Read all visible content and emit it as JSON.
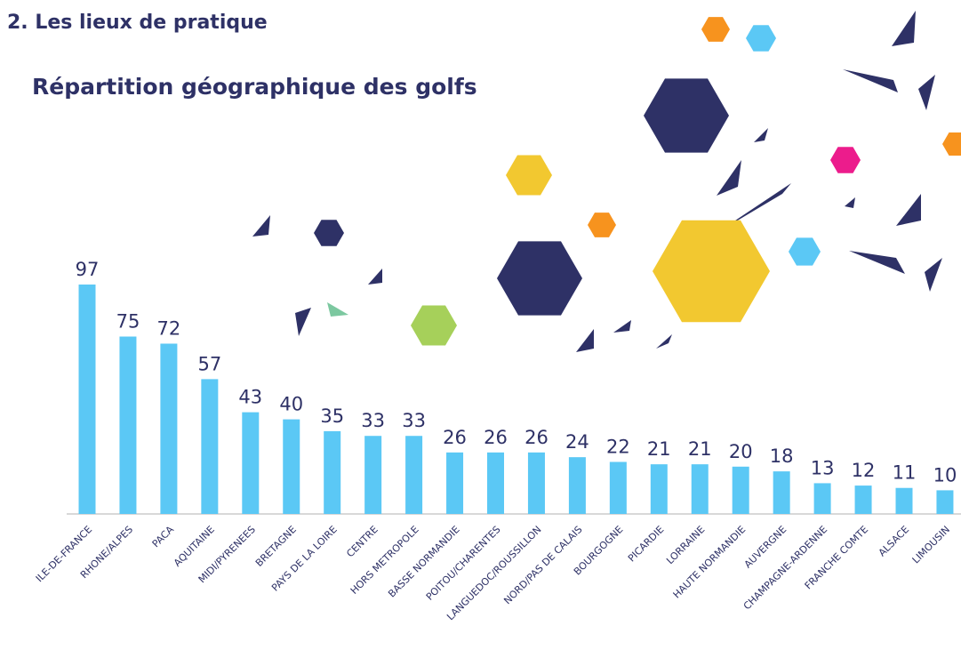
{
  "header": {
    "section": "2. Les lieux de pratique"
  },
  "chart_data": {
    "type": "bar",
    "title": "Répartition géographique des golfs",
    "categories": [
      "ILE-DE-FRANCE",
      "RHONE/ALPES",
      "PACA",
      "AQUITAINE",
      "MIDI/PYRENEES",
      "BRETAGNE",
      "PAYS DE LA LOIRE",
      "CENTRE",
      "HORS METROPOLE",
      "BASSE NORMANDIE",
      "POITOU/CHARENTES",
      "LANGUEDOC/ROUSSILLON",
      "NORD/PAS DE CALAIS",
      "BOURGOGNE",
      "PICARDIE",
      "LORRAINE",
      "HAUTE NORMANDIE",
      "AUVERGNE",
      "CHAMPAGNE-ARDENNE",
      "FRANCHE COMTE",
      "ALSACE",
      "LIMOUSIN"
    ],
    "values": [
      97,
      75,
      72,
      57,
      43,
      40,
      35,
      33,
      33,
      26,
      26,
      26,
      24,
      22,
      21,
      21,
      20,
      18,
      13,
      12,
      11,
      10
    ],
    "color": "#5bc8f5",
    "ylim": [
      0,
      100
    ]
  }
}
